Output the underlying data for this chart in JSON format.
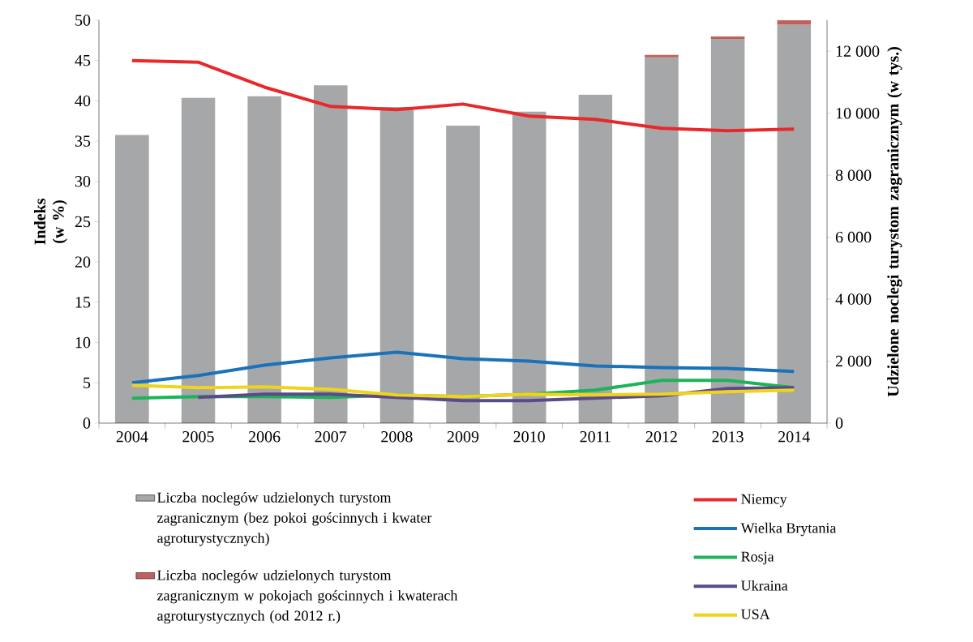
{
  "chart_data": {
    "type": "line",
    "categories": [
      "2004",
      "2005",
      "2006",
      "2007",
      "2008",
      "2009",
      "2010",
      "2011",
      "2012",
      "2013",
      "2014"
    ],
    "ylabel": "Indeks (w %)",
    "y2label": "Udzielone noclegi turystom zagranicznym (w tys.)",
    "ylim": [
      0,
      50
    ],
    "yticks": [
      0,
      5,
      10,
      15,
      20,
      25,
      30,
      35,
      40,
      45,
      50
    ],
    "y2lim": [
      0,
      13000
    ],
    "y2ticks": [
      0,
      {
        "value": 2000,
        "label": "2 000"
      },
      {
        "value": 4000,
        "label": "4 000"
      },
      {
        "value": 6000,
        "label": "6 000"
      },
      {
        "value": 8000,
        "label": "8 000"
      },
      {
        "value": 10000,
        "label": "10 000"
      },
      {
        "value": 12000,
        "label": "12 000"
      }
    ],
    "stacked": true,
    "legend": "bottom",
    "series": [
      {
        "name": "Liczba noclegów udzielonych turystom zagranicznym (bez pokoi gościnnych i kwater agroturystycznych)",
        "type": "bar",
        "axis": "y2",
        "color": "#a6a7a9",
        "values": [
          9300,
          10500,
          10550,
          10900,
          10200,
          9600,
          10050,
          10600,
          11800,
          12400,
          12850
        ]
      },
      {
        "name": "Liczba noclegów udzielonych turystom zagranicznym w pokojach gościnnych i kwaterach agroturystycznych (od 2012 r.)",
        "type": "bar",
        "axis": "y2",
        "color": "#c0605e",
        "values": [
          null,
          null,
          null,
          null,
          null,
          null,
          null,
          null,
          80,
          80,
          150
        ]
      },
      {
        "name": "Niemcy",
        "color": "#e8282a",
        "values": [
          45.0,
          44.8,
          41.7,
          39.3,
          38.9,
          39.6,
          38.1,
          37.7,
          36.6,
          36.3,
          36.5
        ]
      },
      {
        "name": "Wielka Brytania",
        "color": "#1a72bb",
        "values": [
          5.0,
          5.9,
          7.2,
          8.1,
          8.8,
          8.0,
          7.7,
          7.1,
          6.9,
          6.8,
          6.4
        ]
      },
      {
        "name": "Rosja",
        "color": "#1db35a",
        "values": [
          3.1,
          3.3,
          3.3,
          3.2,
          3.5,
          3.3,
          3.6,
          4.1,
          5.3,
          5.3,
          4.4
        ]
      },
      {
        "name": "Ukraina",
        "color": "#5a4a8a",
        "values": [
          null,
          3.2,
          3.6,
          3.6,
          3.2,
          2.8,
          2.8,
          3.1,
          3.4,
          4.3,
          4.4
        ]
      },
      {
        "name": "USA",
        "color": "#f0d41c",
        "values": [
          4.7,
          4.4,
          4.5,
          4.2,
          3.5,
          3.3,
          3.6,
          3.5,
          3.6,
          3.9,
          4.1
        ]
      }
    ]
  }
}
